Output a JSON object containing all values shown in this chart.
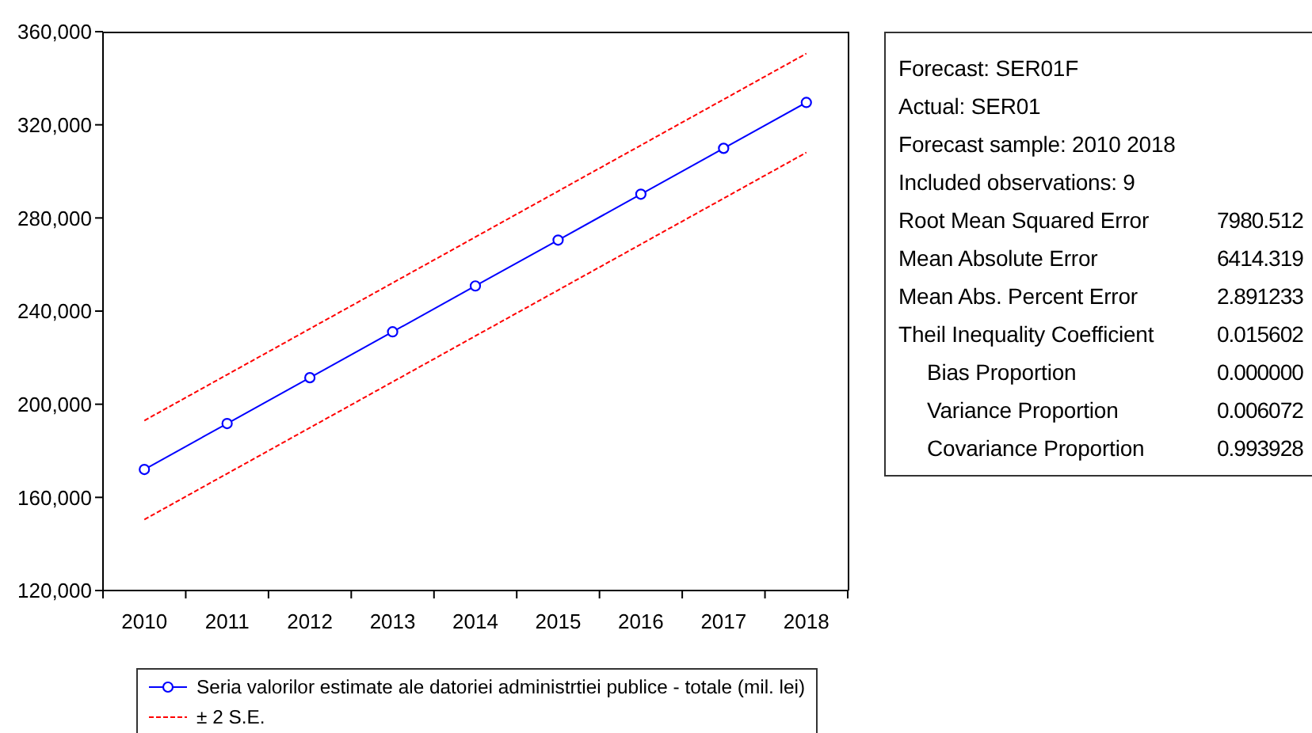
{
  "chart_data": [
    {
      "type": "line",
      "categories": [
        "2010",
        "2011",
        "2012",
        "2013",
        "2014",
        "2015",
        "2016",
        "2017",
        "2018"
      ],
      "series": [
        {
          "name": "Seria valorilor estimate ale datoriei administrtiei publice - totale (mil. lei)",
          "color": "#0000ff",
          "marker": "circle",
          "line_style": "solid",
          "values": [
            172000,
            191700,
            211400,
            231100,
            250800,
            270500,
            290200,
            309900,
            329600
          ]
        },
        {
          "name": "± 2 S.E.",
          "color": "#ff0000",
          "marker": "none",
          "line_style": "dashed",
          "values": [
            193000,
            212700,
            232400,
            252100,
            271800,
            291500,
            311200,
            330900,
            350600
          ]
        },
        {
          "color": "#ff0000",
          "marker": "none",
          "line_style": "dashed",
          "values": [
            150500,
            170200,
            189900,
            209600,
            229300,
            249000,
            268700,
            288400,
            308100
          ]
        }
      ],
      "ylim": [
        120000,
        360000
      ],
      "yticks": [
        {
          "value": 120000,
          "label": "120,000"
        },
        {
          "value": 160000,
          "label": "160,000"
        },
        {
          "value": 200000,
          "label": "200,000"
        },
        {
          "value": 240000,
          "label": "240,000"
        },
        {
          "value": 280000,
          "label": "280,000"
        },
        {
          "value": 320000,
          "label": "320,000"
        },
        {
          "value": 360000,
          "label": "360,000"
        }
      ],
      "legend": "bottom"
    },
    {
      "type": "other",
      "annotations": [
        "Forecast: SER01F",
        "Actual: SER01",
        "Forecast sample: 2010 2018",
        "Included observations: 9",
        "Root Mean Squared Error\t7980.512",
        "Mean Absolute Error\t6414.319",
        "Mean Abs. Percent Error\t2.891233",
        "Theil Inequality Coefficient\t0.015602",
        "   Bias Proportion\t0.000000",
        "   Variance Proportion\t0.006072",
        "   Covariance Proportion\t0.993928"
      ]
    }
  ]
}
